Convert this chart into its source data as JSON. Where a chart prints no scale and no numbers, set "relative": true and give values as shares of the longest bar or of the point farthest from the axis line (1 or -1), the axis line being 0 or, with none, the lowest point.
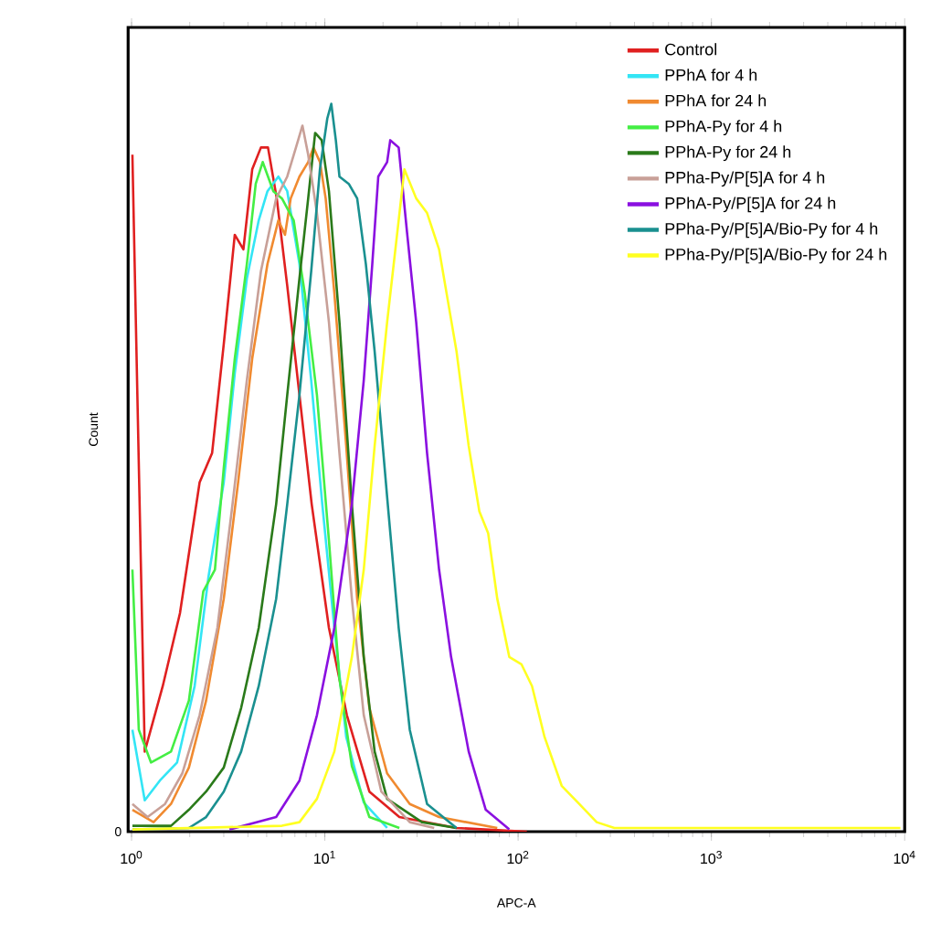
{
  "chart_data": {
    "type": "line",
    "relative": true,
    "xlabel": "APC-A",
    "ylabel": "Count",
    "annotations": [
      "0"
    ],
    "log": "x",
    "grid": false,
    "legend": "top right",
    "marker": "none",
    "line_style": "solid",
    "xlim": [
      0.96,
      10000
    ],
    "xticks": [
      {
        "value": 1,
        "label": "10$^{0}$"
      },
      {
        "value": 10,
        "label": "10$^{1}$"
      },
      {
        "value": 100,
        "label": "10$^{2}$"
      },
      {
        "value": 1000,
        "label": "10$^{3}$"
      },
      {
        "value": 10000,
        "label": "10$^{4}$"
      }
    ],
    "series": [
      {
        "name": "Control",
        "color": "#e02020",
        "x": [
          1.01,
          1.17,
          1.45,
          1.78,
          2.25,
          2.61,
          3.0,
          3.42,
          3.79,
          4.21,
          4.67,
          5.08,
          5.64,
          6.39,
          7.39,
          8.55,
          10.5,
          13.0,
          17.0,
          24.3,
          48,
          111
        ],
        "values": [
          0.93,
          0.11,
          0.2,
          0.3,
          0.48,
          0.52,
          0.67,
          0.82,
          0.8,
          0.91,
          0.94,
          0.94,
          0.87,
          0.75,
          0.6,
          0.45,
          0.28,
          0.16,
          0.055,
          0.02,
          0.005,
          0
        ]
      },
      {
        "name": "PPhA for 4 h",
        "color": "#33e5f5",
        "x": [
          1.01,
          1.17,
          1.4,
          1.72,
          2.12,
          2.5,
          3.0,
          3.42,
          3.95,
          4.55,
          5.05,
          5.75,
          6.39,
          7.39,
          8.5,
          9.7,
          11.2,
          12.9,
          15.9,
          21
        ],
        "values": [
          0.14,
          0.043,
          0.07,
          0.095,
          0.2,
          0.35,
          0.48,
          0.63,
          0.76,
          0.84,
          0.88,
          0.9,
          0.88,
          0.78,
          0.62,
          0.45,
          0.28,
          0.13,
          0.04,
          0.005
        ]
      },
      {
        "name": "PPhA for 24 h",
        "color": "#f08a30",
        "x": [
          1.01,
          1.3,
          1.6,
          1.98,
          2.43,
          3.0,
          3.56,
          4.21,
          5.05,
          5.75,
          6.22,
          6.66,
          7.39,
          8.2,
          8.73,
          9.43,
          10.1,
          11.2,
          12.9,
          14.7,
          17.0,
          21,
          27.5,
          39,
          78
        ],
        "values": [
          0.03,
          0.013,
          0.038,
          0.088,
          0.18,
          0.32,
          0.48,
          0.65,
          0.78,
          0.84,
          0.82,
          0.87,
          0.9,
          0.92,
          0.94,
          0.92,
          0.87,
          0.74,
          0.53,
          0.32,
          0.17,
          0.08,
          0.038,
          0.02,
          0.005
        ]
      },
      {
        "name": "PPhA-Py for 4 h",
        "color": "#44ee44",
        "x": [
          1.01,
          1.09,
          1.26,
          1.6,
          1.98,
          2.35,
          2.7,
          3.0,
          3.42,
          3.95,
          4.39,
          4.77,
          5.41,
          6.0,
          6.9,
          7.87,
          9.1,
          10.5,
          11.9,
          13.8,
          17.0,
          24.3
        ],
        "values": [
          0.36,
          0.14,
          0.095,
          0.11,
          0.18,
          0.33,
          0.36,
          0.5,
          0.65,
          0.78,
          0.89,
          0.92,
          0.88,
          0.87,
          0.84,
          0.74,
          0.6,
          0.4,
          0.21,
          0.09,
          0.02,
          0.005
        ]
      },
      {
        "name": "PPhA-Py for 24 h",
        "color": "#2a7a1a",
        "x": [
          1.01,
          1.6,
          1.98,
          2.43,
          3.0,
          3.69,
          4.55,
          5.6,
          6.39,
          7.39,
          8.2,
          8.91,
          9.63,
          10.5,
          11.9,
          13.8,
          15.9,
          18.1,
          21,
          31.8,
          48
        ],
        "values": [
          0.008,
          0.008,
          0.03,
          0.055,
          0.088,
          0.17,
          0.28,
          0.45,
          0.6,
          0.76,
          0.87,
          0.96,
          0.95,
          0.88,
          0.7,
          0.45,
          0.24,
          0.11,
          0.045,
          0.013,
          0.005
        ]
      },
      {
        "name": "PPha-Py/P[5]A for 4 h",
        "color": "#c8a098",
        "x": [
          1.01,
          1.21,
          1.49,
          1.83,
          2.25,
          2.78,
          3.33,
          3.95,
          4.67,
          5.6,
          6.39,
          7.09,
          7.66,
          8.2,
          9.1,
          10.5,
          11.9,
          13.8,
          15.9,
          19.6,
          27.5,
          36.8
        ],
        "values": [
          0.038,
          0.02,
          0.038,
          0.08,
          0.16,
          0.28,
          0.45,
          0.62,
          0.77,
          0.87,
          0.9,
          0.94,
          0.97,
          0.93,
          0.85,
          0.7,
          0.52,
          0.32,
          0.16,
          0.055,
          0.013,
          0.005
        ]
      },
      {
        "name": "PPhA-Py/P[5]A for 24 h",
        "color": "#8a10e0",
        "x": [
          3.21,
          5.6,
          7.39,
          9.1,
          11.2,
          13.8,
          15.9,
          17.6,
          18.9,
          21,
          21.8,
          24.1,
          26.7,
          29.7,
          33.8,
          39,
          45,
          55.5,
          68,
          90
        ],
        "values": [
          0.003,
          0.02,
          0.07,
          0.16,
          0.28,
          0.45,
          0.62,
          0.78,
          0.9,
          0.92,
          0.95,
          0.94,
          0.82,
          0.7,
          0.52,
          0.36,
          0.24,
          0.11,
          0.03,
          0.003
        ]
      },
      {
        "name": "PPha-Py/P[5]A/Bio-Py for 4 h",
        "color": "#1a9090",
        "x": [
          1.01,
          1.98,
          2.43,
          3.0,
          3.69,
          4.55,
          5.6,
          6.39,
          7.39,
          8.5,
          9.43,
          10.3,
          10.8,
          11.4,
          11.9,
          13.3,
          14.7,
          16.3,
          18.1,
          21,
          24.1,
          27.5,
          33.8,
          48
        ],
        "values": [
          0.003,
          0.005,
          0.02,
          0.055,
          0.11,
          0.2,
          0.32,
          0.45,
          0.6,
          0.77,
          0.91,
          0.98,
          1.0,
          0.95,
          0.9,
          0.89,
          0.87,
          0.78,
          0.66,
          0.46,
          0.28,
          0.14,
          0.038,
          0.005
        ]
      },
      {
        "name": "PPha-Py/P[5]A/Bio-Py for 24 h",
        "color": "#ffff20",
        "x": [
          1.01,
          6.0,
          7.39,
          9.1,
          11.2,
          13.8,
          15.9,
          18.1,
          21,
          24.1,
          25.8,
          29.7,
          33.8,
          39,
          48,
          55.5,
          63,
          70,
          78,
          90,
          104,
          118,
          137,
          168,
          207,
          255,
          315,
          9500
        ],
        "values": [
          0.003,
          0.008,
          0.013,
          0.045,
          0.11,
          0.24,
          0.36,
          0.53,
          0.7,
          0.84,
          0.91,
          0.87,
          0.85,
          0.8,
          0.66,
          0.53,
          0.44,
          0.41,
          0.32,
          0.24,
          0.23,
          0.2,
          0.13,
          0.063,
          0.038,
          0.013,
          0.005,
          0.005
        ]
      }
    ]
  }
}
